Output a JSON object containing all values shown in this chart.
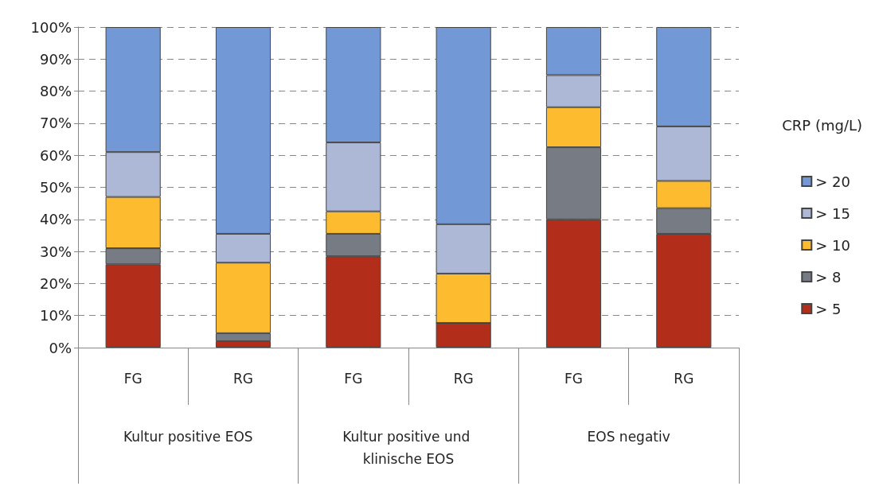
{
  "chart_data": {
    "type": "bar",
    "stacked": true,
    "legend_title": "CRP (mg/L)",
    "categories": [
      "FG",
      "RG",
      "FG",
      "RG",
      "FG",
      "RG"
    ],
    "annotations": [
      "Kultur positive EOS",
      "Kultur positive und klinische EOS",
      "EOS negativ"
    ],
    "series": [
      {
        "name": "> 5",
        "color": "#b22e1a",
        "values": [
          26,
          2,
          28.5,
          7.7,
          40,
          35.5
        ]
      },
      {
        "name": "> 8",
        "color": "#767b84",
        "values": [
          5,
          2.5,
          7,
          0,
          22.5,
          8
        ]
      },
      {
        "name": "> 10",
        "color": "#fdbb2f",
        "values": [
          16,
          22,
          7,
          15.4,
          12.5,
          8.5
        ]
      },
      {
        "name": "> 15",
        "color": "#adb8d6",
        "values": [
          14,
          9,
          21.5,
          15.4,
          10,
          17
        ]
      },
      {
        "name": "> 20",
        "color": "#7299d6",
        "values": [
          39,
          64.5,
          36,
          61.5,
          15,
          31
        ]
      }
    ],
    "ylim": [
      0,
      100
    ],
    "yticks": [
      {
        "value": 0,
        "label": "0%"
      },
      {
        "value": 10,
        "label": "10%"
      },
      {
        "value": 20,
        "label": "20%"
      },
      {
        "value": 30,
        "label": "30%"
      },
      {
        "value": 40,
        "label": "40%"
      },
      {
        "value": 50,
        "label": "50%"
      },
      {
        "value": 60,
        "label": "60%"
      },
      {
        "value": 70,
        "label": "70%"
      },
      {
        "value": 80,
        "label": "80%"
      },
      {
        "value": 90,
        "label": "90%"
      },
      {
        "value": 100,
        "label": "100%"
      }
    ],
    "grid": "y",
    "legend": "right"
  }
}
